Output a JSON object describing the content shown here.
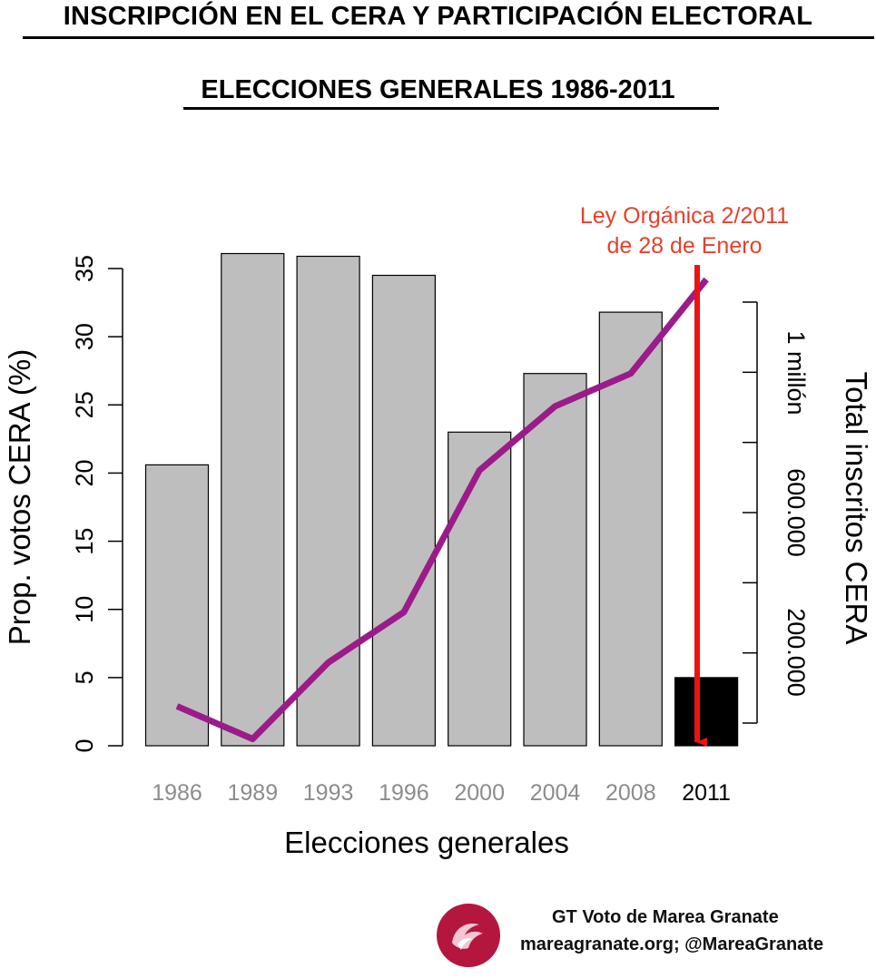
{
  "header": {
    "title": "INSCRIPCIÓN EN EL CERA Y PARTICIPACIÓN ELECTORAL",
    "subtitle": "ELECCIONES GENERALES 1986-2011"
  },
  "chart_data": {
    "type": "bar",
    "categories": [
      "1986",
      "1989",
      "1993",
      "1996",
      "2000",
      "2004",
      "2008",
      "2011"
    ],
    "xlabel": "Elecciones generales",
    "ylabel": "Prop. votos CERA (%)",
    "ylim": [
      0,
      35
    ],
    "yticks": [
      "0",
      "5",
      "10",
      "15",
      "20",
      "25",
      "30",
      "35"
    ],
    "y2label": "Total inscritos CERA",
    "y2ticks": [
      "200.000",
      "600.000",
      "1 millón"
    ],
    "series": [
      {
        "values": [
          20.6,
          36.1,
          35.9,
          34.5,
          23.0,
          27.3,
          31.8,
          5.0
        ]
      },
      {
        "values": [
          2.9,
          0.5,
          6.1,
          9.8,
          20.2,
          24.9,
          27.3,
          34.2
        ]
      }
    ],
    "annotation": {
      "line1": "Ley Orgánica 2/2011",
      "line2": "de 28 de Enero",
      "category": "2011"
    },
    "colors": {
      "bars": "#bebebe",
      "highlight_bar": "#000000",
      "line": "#9b1b8a",
      "annotation": "#e8402a",
      "arrow": "#ee1111",
      "category_text": "#8c8c8c",
      "highlight_category_text": "#000000"
    },
    "grid": false
  },
  "footer": {
    "credit_line1": "GT Voto de Marea Granate",
    "credit_line2": "mareagranate.org; @MareaGranate",
    "logo_icon": "marea-granate-logo-icon",
    "logo_color": "#b5163e"
  }
}
